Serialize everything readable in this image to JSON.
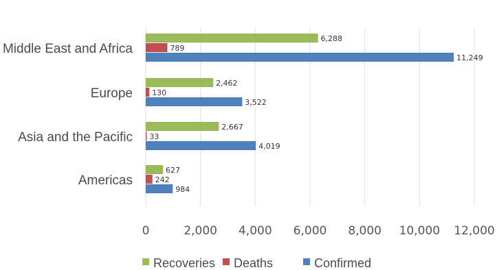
{
  "chart_data": {
    "type": "bar",
    "orientation": "horizontal",
    "title": "",
    "categories": [
      "Middle East and Africa",
      "Europe",
      "Asia and the Pacific",
      "Americas"
    ],
    "series": [
      {
        "name": "Recoveries",
        "color": "#9bbb59",
        "values": [
          6288,
          2462,
          2667,
          627
        ],
        "labels": [
          "6,288",
          "2,462",
          "2,667",
          "627"
        ]
      },
      {
        "name": "Deaths",
        "color": "#c0504d",
        "values": [
          789,
          130,
          33,
          242
        ],
        "labels": [
          "789",
          "130",
          "33",
          "242"
        ]
      },
      {
        "name": "Confirmed",
        "color": "#4f81bd",
        "values": [
          11249,
          3522,
          4019,
          984
        ],
        "labels": [
          "11,249",
          "3,522",
          "4,019",
          "984"
        ]
      }
    ],
    "xlim": [
      0,
      12000
    ],
    "xticks": [
      0,
      2000,
      4000,
      6000,
      8000,
      10000,
      12000
    ],
    "xtick_labels": [
      "0",
      "2,000",
      "4,000",
      "6,000",
      "8,000",
      "10,000",
      "12,000"
    ],
    "grid": true,
    "legend_position": "bottom"
  }
}
